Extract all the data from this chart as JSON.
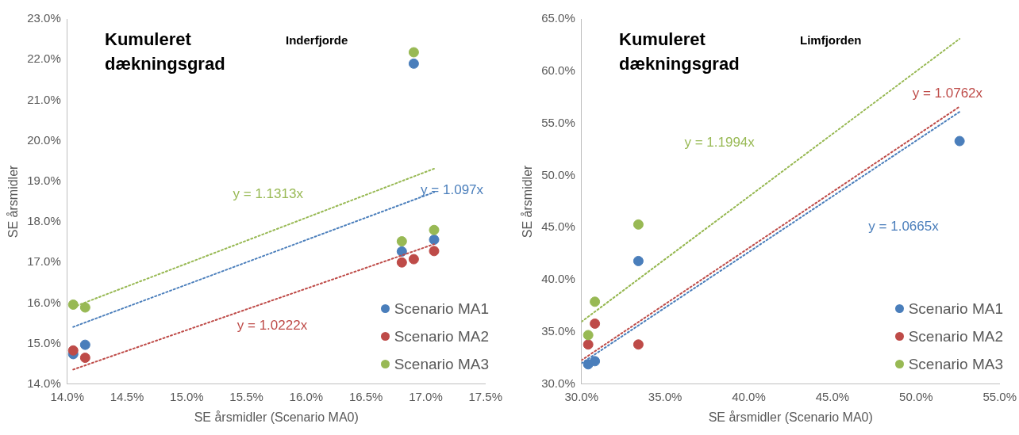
{
  "chart_data": [
    {
      "type": "scatter",
      "title": "Kumuleret dækningsgrad",
      "subtitle": "Inderfjorde",
      "xlabel": "SE årsmidler (Scenario MA0)",
      "ylabel": "SE årsmidler",
      "marker": "circle",
      "legend": "bottom right",
      "xlim": [
        14,
        17.5
      ],
      "xticks": [
        {
          "value": 14,
          "label": "14.0%"
        },
        {
          "value": 14.5,
          "label": "14.5%"
        },
        {
          "value": 15,
          "label": "15.0%"
        },
        {
          "value": 15.5,
          "label": "15.5%"
        },
        {
          "value": 16,
          "label": "16.0%"
        },
        {
          "value": 16.5,
          "label": "16.5%"
        },
        {
          "value": 17,
          "label": "17.0%"
        },
        {
          "value": 17.5,
          "label": "17.5%"
        }
      ],
      "ylim": [
        14,
        23
      ],
      "yticks": [
        {
          "value": 14,
          "label": "14.0%"
        },
        {
          "value": 15,
          "label": "15.0%"
        },
        {
          "value": 16,
          "label": "16.0%"
        },
        {
          "value": 17,
          "label": "17.0%"
        },
        {
          "value": 18,
          "label": "18.0%"
        },
        {
          "value": 19,
          "label": "19.0%"
        },
        {
          "value": 20,
          "label": "20.0%"
        },
        {
          "value": 21,
          "label": "21.0%"
        },
        {
          "value": 22,
          "label": "22.0%"
        },
        {
          "value": 23,
          "label": "23.0%"
        }
      ],
      "x": [
        14.05,
        14.15,
        16.8,
        16.9,
        17.07
      ],
      "series": [
        {
          "name": "Scenario MA1",
          "color": "#4a7ebb",
          "values": [
            14.74,
            14.97,
            17.27,
            21.9,
            17.56
          ]
        },
        {
          "name": "Scenario MA2",
          "color": "#be4b48",
          "values": [
            14.83,
            14.65,
            17.0,
            17.08,
            17.28
          ]
        },
        {
          "name": "Scenario MA3",
          "color": "#98b954",
          "values": [
            15.96,
            15.89,
            17.52,
            22.18,
            17.8
          ]
        },
        {
          "name": "y = 1.097x",
          "type": "line",
          "marker": "none",
          "line_style": "dotted",
          "color": "#4a7ebb",
          "x": [
            14.05,
            17.07
          ],
          "values": [
            15.41,
            18.73
          ]
        },
        {
          "name": "y = 1.0222x",
          "type": "line",
          "marker": "none",
          "line_style": "dotted",
          "color": "#be4b48",
          "x": [
            14.05,
            17.07
          ],
          "values": [
            14.36,
            17.45
          ]
        },
        {
          "name": "y = 1.1313x",
          "type": "line",
          "marker": "none",
          "line_style": "dotted",
          "color": "#98b954",
          "x": [
            14.05,
            17.07
          ],
          "values": [
            15.9,
            19.31
          ]
        }
      ]
    },
    {
      "type": "scatter",
      "title": "Kumuleret dækningsgrad",
      "subtitle": "Limfjorden",
      "xlabel": "SE årsmidler (Scenario MA0)",
      "ylabel": "SE årsmidler",
      "marker": "circle",
      "legend": "bottom right",
      "xlim": [
        30,
        55
      ],
      "xticks": [
        {
          "value": 30,
          "label": "30.0%"
        },
        {
          "value": 35,
          "label": "35.0%"
        },
        {
          "value": 40,
          "label": "40.0%"
        },
        {
          "value": 45,
          "label": "45.0%"
        },
        {
          "value": 50,
          "label": "50.0%"
        },
        {
          "value": 55,
          "label": "55.0%"
        }
      ],
      "ylim": [
        30,
        65
      ],
      "yticks": [
        {
          "value": 30,
          "label": "30.0%"
        },
        {
          "value": 35,
          "label": "35.0%"
        },
        {
          "value": 40,
          "label": "40.0%"
        },
        {
          "value": 45,
          "label": "45.0%"
        },
        {
          "value": 50,
          "label": "50.0%"
        },
        {
          "value": 55,
          "label": "55.0%"
        },
        {
          "value": 60,
          "label": "60.0%"
        },
        {
          "value": 65,
          "label": "65.0%"
        }
      ],
      "series": [
        {
          "name": "Scenario MA1",
          "color": "#4a7ebb",
          "x": [
            30.4,
            30.8,
            33.4,
            52.6
          ],
          "values": [
            31.9,
            32.2,
            41.8,
            53.3
          ]
        },
        {
          "name": "Scenario MA2",
          "color": "#be4b48",
          "x": [
            30.4,
            30.8,
            33.4
          ],
          "values": [
            33.8,
            35.8,
            33.8
          ]
        },
        {
          "name": "Scenario MA3",
          "color": "#98b954",
          "x": [
            30.4,
            30.8,
            33.4
          ],
          "values": [
            34.7,
            37.9,
            45.3
          ]
        },
        {
          "name": "y = 1.0665x",
          "type": "line",
          "marker": "none",
          "line_style": "dotted",
          "color": "#4a7ebb",
          "x": [
            30,
            52.6
          ],
          "values": [
            32.0,
            56.1
          ]
        },
        {
          "name": "y = 1.0762x",
          "type": "line",
          "marker": "none",
          "line_style": "dotted",
          "color": "#be4b48",
          "x": [
            30,
            52.6
          ],
          "values": [
            32.29,
            56.6
          ]
        },
        {
          "name": "y = 1.1994x",
          "type": "line",
          "marker": "none",
          "line_style": "dotted",
          "color": "#98b954",
          "x": [
            30,
            52.6
          ],
          "values": [
            35.98,
            63.1
          ]
        }
      ]
    }
  ]
}
